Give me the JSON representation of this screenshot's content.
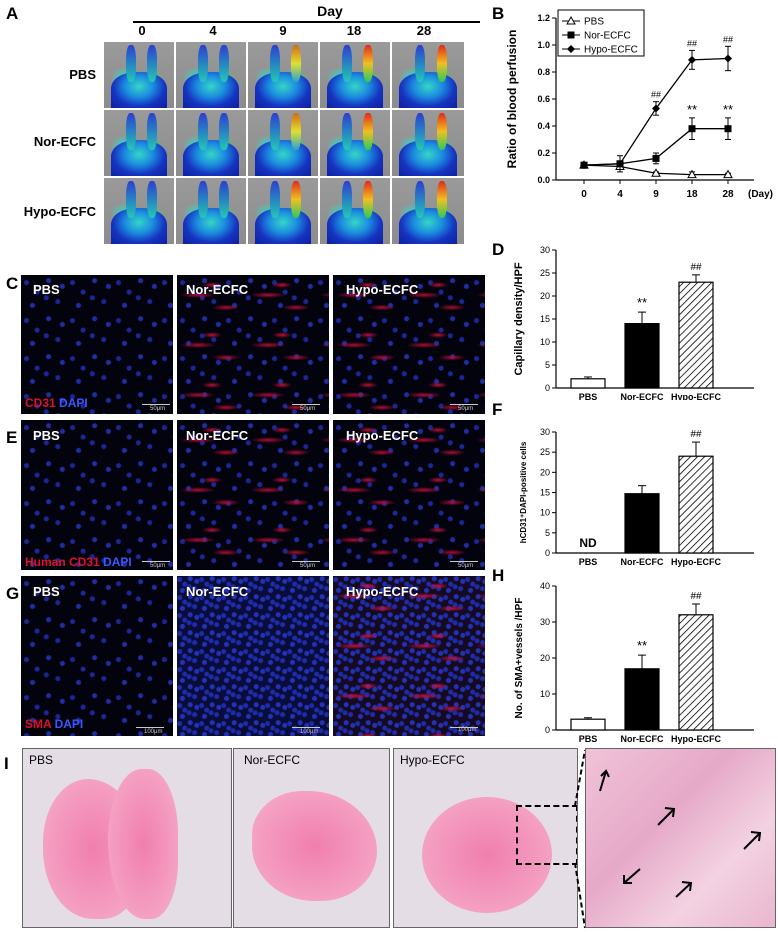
{
  "panel_letters": {
    "A": "A",
    "B": "B",
    "C": "C",
    "D": "D",
    "E": "E",
    "F": "F",
    "G": "G",
    "H": "H",
    "I": "I"
  },
  "panelA": {
    "day_header": "Day",
    "days": [
      "0",
      "4",
      "9",
      "18",
      "28"
    ],
    "rows": [
      "PBS",
      "Nor-ECFC",
      "Hypo-ECFC"
    ]
  },
  "groups": [
    "PBS",
    "Nor-ECFC",
    "Hypo-ECFC"
  ],
  "panelC": {
    "stain_red": "CD31",
    "stain_blue": "DAPI",
    "scale": "50μm"
  },
  "panelE": {
    "stain_red": "Human CD31",
    "stain_blue": "DAPI",
    "scale": "50μm"
  },
  "panelG": {
    "stain_red": "SMA",
    "stain_blue": "DAPI",
    "scale": "100μm"
  },
  "chart_data": [
    {
      "panel": "B",
      "type": "line",
      "ylabel": "Ratio of blood perfusion",
      "xlabel_unit": "(Day)",
      "x": [
        0,
        4,
        9,
        18,
        28
      ],
      "xtick_labels": [
        "0",
        "4",
        "9",
        "18",
        "28"
      ],
      "ylim": [
        0,
        1.2
      ],
      "yticks": [
        "0.0",
        "0.2",
        "0.4",
        "0.6",
        "0.8",
        "1.0",
        "1.2"
      ],
      "legend_position": "top-left",
      "series": [
        {
          "name": "PBS",
          "values": [
            0.11,
            0.1,
            0.05,
            0.04,
            0.04
          ],
          "errors": [
            0.01,
            0.01,
            0.01,
            0.02,
            0.01
          ],
          "marker": "triangle"
        },
        {
          "name": "Nor-ECFC",
          "values": [
            0.11,
            0.12,
            0.16,
            0.38,
            0.38
          ],
          "errors": [
            0.01,
            0.02,
            0.04,
            0.08,
            0.08
          ],
          "marker": "square",
          "annotations": [
            "",
            "",
            "",
            "**",
            "**"
          ]
        },
        {
          "name": "Hypo-ECFC",
          "values": [
            0.11,
            0.12,
            0.53,
            0.89,
            0.9
          ],
          "errors": [
            0.01,
            0.06,
            0.05,
            0.07,
            0.09
          ],
          "marker": "diamond",
          "annotations": [
            "",
            "",
            "##",
            "##",
            "##"
          ]
        }
      ]
    },
    {
      "panel": "D",
      "type": "bar",
      "ylabel": "Capillary density/HPF",
      "categories": [
        "PBS",
        "Nor-ECFC",
        "Hypo-ECFC"
      ],
      "values": [
        2,
        14,
        23
      ],
      "errors": [
        0.4,
        2.5,
        1.6
      ],
      "annotations": [
        "",
        "**",
        "##"
      ],
      "ylim": [
        0,
        30
      ],
      "yticks": [
        "0",
        "5",
        "10",
        "15",
        "20",
        "25",
        "30"
      ]
    },
    {
      "panel": "F",
      "type": "bar",
      "ylabel": "hCD31⁺DAPI-positive cells",
      "categories": [
        "PBS",
        "Nor-ECFC",
        "Hypo-ECFC"
      ],
      "values": [
        0,
        14.7,
        24
      ],
      "errors": [
        0,
        2,
        3.5
      ],
      "annotations": [
        "ND",
        "",
        "##"
      ],
      "ylim": [
        0,
        30
      ],
      "yticks": [
        "0",
        "5",
        "10",
        "15",
        "20",
        "25",
        "30"
      ]
    },
    {
      "panel": "H",
      "type": "bar",
      "ylabel": "No. of SMA+vessels /HPF",
      "categories": [
        "PBS",
        "Nor-ECFC",
        "Hypo-ECFC"
      ],
      "values": [
        3,
        17,
        32
      ],
      "errors": [
        0.4,
        3.8,
        3
      ],
      "annotations": [
        "",
        "**",
        "##"
      ],
      "ylim": [
        0,
        40
      ],
      "yticks": [
        "0",
        "10",
        "20",
        "30",
        "40"
      ]
    }
  ]
}
